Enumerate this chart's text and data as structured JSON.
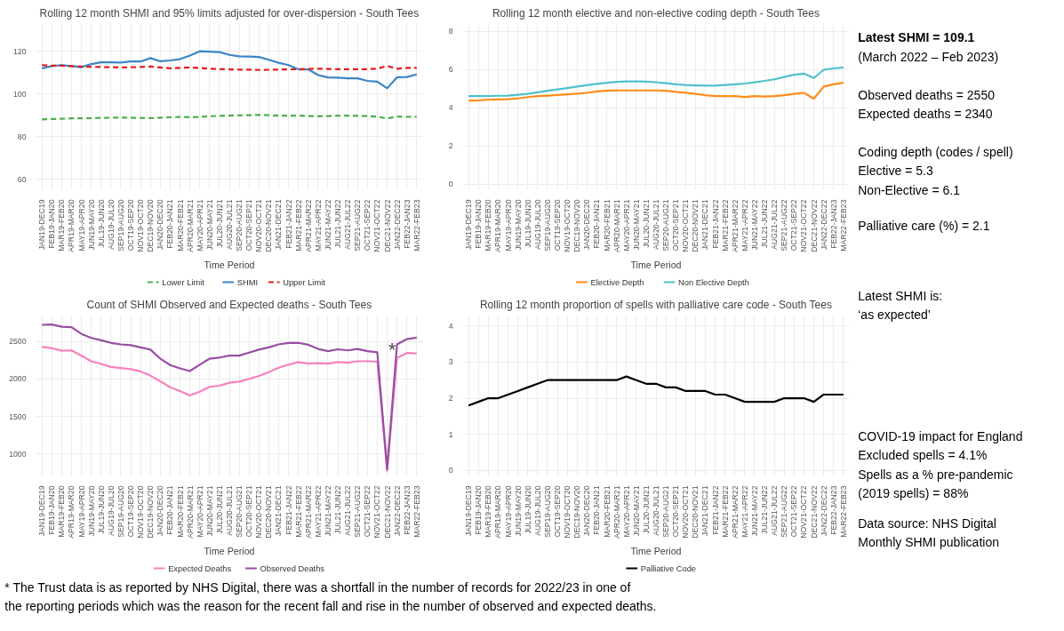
{
  "chart_data": [
    {
      "type": "line",
      "title": "Rolling 12 month SHMI and 95% limits adjusted for over-dispersion - South Tees",
      "xlabel": "Time Period",
      "categories": [
        "JAN19-DEC19",
        "FEB19-JAN20",
        "MAR19-FEB20",
        "APR19-MAR20",
        "MAY19-APR20",
        "JUN19-MAY20",
        "JUL19-JUN20",
        "AUG19-JUL20",
        "SEP19-AUG20",
        "OCT19-SEP20",
        "NOV19-OCT20",
        "DEC19-NOV20",
        "JAN20-DEC20",
        "FEB20-JAN21",
        "MAR20-FEB21",
        "APR20-MAR21",
        "MAY20-APR21",
        "JUN20-MAY21",
        "JUL20-JUN21",
        "AUG20-JUL21",
        "SEP20-AUG21",
        "OCT20-SEP21",
        "NOV20-OCT21",
        "DEC20-NOV21",
        "JAN21-DEC21",
        "FEB21-JAN22",
        "MAR21-FEB22",
        "APR21-MAR22",
        "MAY21-APR22",
        "JUN21-MAY22",
        "JUL21-JUN22",
        "AUG21-JUL22",
        "SEP21-AUG22",
        "OCT21-SEP22",
        "NOV21-OCT22",
        "DEC21-NOV22",
        "JAN22-DEC22",
        "FEB22-JAN23",
        "MAR22-FEB23"
      ],
      "ylim": [
        55,
        133
      ],
      "yticks": [
        60,
        80,
        100,
        120
      ],
      "grid": true,
      "legend": "bottom",
      "series": [
        {
          "name": "Lower Limit",
          "color": "#4daf4a",
          "line_style": "dashed",
          "values": [
            88,
            88.2,
            88.3,
            88.5,
            88.5,
            88.6,
            88.7,
            88.8,
            88.8,
            88.8,
            88.7,
            88.6,
            88.8,
            89,
            89.2,
            89,
            89.2,
            89.5,
            89.7,
            89.8,
            89.9,
            90,
            90.1,
            90,
            89.8,
            89.8,
            89.8,
            89.6,
            89.5,
            89.6,
            89.8,
            89.8,
            89.7,
            89.6,
            89.3,
            88.4,
            89.4,
            89.2,
            89.3
          ]
        },
        {
          "name": "SHMI",
          "color": "#3b85c5",
          "line_style": "solid",
          "values": [
            112,
            113,
            113.5,
            113,
            112.5,
            114,
            114.8,
            114.8,
            114.7,
            115.2,
            115.2,
            116.8,
            115.3,
            115.7,
            116.3,
            118,
            120,
            119.8,
            119.6,
            118.3,
            117.6,
            117.5,
            117.3,
            116,
            114.6,
            113.5,
            111.5,
            111.5,
            108.8,
            107.7,
            107.6,
            107.3,
            107.3,
            106.1,
            105.7,
            102.6,
            107.8,
            107.9,
            109.1
          ]
        },
        {
          "name": "Upper Limit",
          "color": "#e41a1c",
          "line_style": "dashed",
          "values": [
            113.5,
            113.2,
            113.2,
            113,
            112.8,
            112.7,
            112.6,
            112.5,
            112.4,
            112.5,
            112.6,
            112.8,
            112.4,
            112,
            112.2,
            112.4,
            112.2,
            111.8,
            111.6,
            111.5,
            111.4,
            111.4,
            111.2,
            111.3,
            111.4,
            111.5,
            111.6,
            111.7,
            111.8,
            111.7,
            111.6,
            111.6,
            111.6,
            111.6,
            111.8,
            113.1,
            111.8,
            112.2,
            112.2
          ]
        }
      ]
    },
    {
      "type": "line",
      "title": "Rolling 12 month elective and non-elective coding depth - South Tees",
      "xlabel": "Time Period",
      "categories": [
        "JAN19-DEC19",
        "FEB19-JAN20",
        "MAR19-FEB20",
        "APR19-MAR20",
        "MAY19-APR20",
        "JUN19-MAY20",
        "JUL19-JUN20",
        "AUG19-JUL20",
        "SEP19-AUG20",
        "OCT19-SEP20",
        "NOV19-OCT20",
        "DEC19-NOV20",
        "JAN20-DEC20",
        "FEB20-JAN21",
        "MAR20-FEB21",
        "APR20-MAR21",
        "MAY20-APR21",
        "JUN20-MAY21",
        "JUL20-JUN21",
        "AUG20-JUL21",
        "SEP20-AUG21",
        "OCT20-SEP21",
        "NOV20-OCT21",
        "DEC20-NOV21",
        "JAN21-DEC21",
        "FEB21-JAN22",
        "MAR21-FEB22",
        "APR21-MAR22",
        "MAY21-APR22",
        "JUN21-MAY22",
        "JUL21-JUN22",
        "AUG21-JUL22",
        "SEP21-AUG22",
        "OCT21-SEP22",
        "NOV21-OCT22",
        "DEC21-NOV22",
        "JAN22-DEC22",
        "FEB22-JAN23",
        "MAR22-FEB23"
      ],
      "ylim": [
        -0.3,
        8.4
      ],
      "yticks": [
        0,
        2,
        4,
        6,
        8
      ],
      "grid": true,
      "legend": "bottom",
      "series": [
        {
          "name": "Elective Depth",
          "color": "#ff8c1a",
          "line_style": "solid",
          "values": [
            4.37,
            4.38,
            4.41,
            4.43,
            4.44,
            4.48,
            4.55,
            4.6,
            4.63,
            4.66,
            4.7,
            4.73,
            4.77,
            4.85,
            4.88,
            4.9,
            4.9,
            4.9,
            4.9,
            4.9,
            4.88,
            4.82,
            4.78,
            4.72,
            4.65,
            4.6,
            4.6,
            4.6,
            4.56,
            4.6,
            4.58,
            4.6,
            4.65,
            4.72,
            4.77,
            4.47,
            5.1,
            5.22,
            5.3
          ]
        },
        {
          "name": "Non Elective Depth",
          "color": "#4fc1cc",
          "line_style": "solid",
          "values": [
            4.6,
            4.6,
            4.6,
            4.62,
            4.63,
            4.67,
            4.72,
            4.8,
            4.88,
            4.95,
            5.02,
            5.1,
            5.17,
            5.24,
            5.3,
            5.35,
            5.37,
            5.37,
            5.36,
            5.33,
            5.28,
            5.22,
            5.18,
            5.16,
            5.15,
            5.15,
            5.18,
            5.22,
            5.26,
            5.32,
            5.4,
            5.48,
            5.6,
            5.72,
            5.78,
            5.55,
            5.98,
            6.05,
            6.1
          ]
        }
      ]
    },
    {
      "type": "line",
      "title": "Count of SHMI Observed and Expected deaths - South Tees",
      "xlabel": "Time Period",
      "categories": [
        "JAN19-DEC19",
        "FEB19-JAN20",
        "MAR19-FEB20",
        "APR19-MAR20",
        "MAY19-APR20",
        "JUN19-MAY20",
        "JUL19-JUN20",
        "AUG19-JUL20",
        "SEP19-AUG20",
        "OCT19-SEP20",
        "NOV19-OCT20",
        "DEC19-NOV20",
        "JAN20-DEC20",
        "FEB20-JAN21",
        "MAR20-FEB21",
        "APR20-MAR21",
        "MAY20-APR21",
        "JUN20-MAY21",
        "JUL20-JUN21",
        "AUG20-JUL21",
        "SEP20-AUG21",
        "OCT20-SEP21",
        "NOV20-OCT21",
        "DEC20-NOV21",
        "JAN21-DEC21",
        "FEB21-JAN22",
        "MAR21-FEB22",
        "APR21-MAR22",
        "MAY21-APR22",
        "JUN21-MAY22",
        "JUL21-JUN22",
        "AUG21-JUL22",
        "SEP21-AUG22",
        "OCT21-SEP22",
        "NOV21-OCT22",
        "DEC21-NOV22",
        "JAN22-DEC22",
        "FEB22-JAN23",
        "MAR22-FEB23"
      ],
      "ylim": [
        710,
        2850
      ],
      "yticks": [
        1000,
        1500,
        2000,
        2500
      ],
      "grid": true,
      "legend": "bottom",
      "annotations": [
        "*",
        "* The Trust data is as reported by NHS Digital, there was a shortfall in the number of records for 2022/23 in one of the reporting periods which was the reason for the recent fall and rise in the number of observed and expected deaths."
      ],
      "series": [
        {
          "name": "Expected Deaths",
          "color": "#f781bf",
          "line_style": "solid",
          "values": [
            2425,
            2410,
            2375,
            2380,
            2310,
            2235,
            2200,
            2160,
            2145,
            2130,
            2100,
            2045,
            1970,
            1890,
            1840,
            1780,
            1830,
            1895,
            1910,
            1950,
            1965,
            2000,
            2040,
            2090,
            2150,
            2190,
            2225,
            2205,
            2210,
            2205,
            2225,
            2215,
            2235,
            2235,
            2230,
            780,
            2280,
            2345,
            2340
          ]
        },
        {
          "name": "Observed Deaths",
          "color": "#984ea3",
          "line_style": "solid",
          "values": [
            2720,
            2725,
            2695,
            2690,
            2600,
            2545,
            2515,
            2480,
            2460,
            2450,
            2420,
            2390,
            2270,
            2185,
            2140,
            2105,
            2190,
            2270,
            2285,
            2310,
            2310,
            2350,
            2390,
            2420,
            2460,
            2480,
            2480,
            2455,
            2400,
            2370,
            2395,
            2380,
            2400,
            2370,
            2355,
            800,
            2460,
            2530,
            2550
          ]
        }
      ]
    },
    {
      "type": "line",
      "title": "Rolling 12 month proportion of spells with palliative care code - South Tees",
      "xlabel": "Time Period",
      "categories": [
        "JAN19-DEC19",
        "FEB19-JAN20",
        "MAR19-FEB20",
        "APR19-MAR20",
        "MAY19-APR20",
        "JUN19-MAY20",
        "JUL19-JUN20",
        "AUG19-JUL20",
        "SEP19-AUG20",
        "OCT19-SEP20",
        "NOV19-OCT20",
        "DEC19-NOV20",
        "JAN20-DEC20",
        "FEB20-JAN21",
        "MAR20-FEB21",
        "APR20-MAR21",
        "MAY20-APR21",
        "JUN20-MAY21",
        "JUL20-JUN21",
        "AUG20-JUL21",
        "SEP20-AUG21",
        "OCT20-SEP21",
        "NOV20-OCT21",
        "DEC20-NOV21",
        "JAN21-DEC21",
        "FEB21-JAN22",
        "MAR21-FEB22",
        "APR21-MAR22",
        "MAY21-APR22",
        "JUN21-MAY22",
        "JUL21-JUN22",
        "AUG21-JUL22",
        "SEP21-AUG22",
        "OCT21-SEP22",
        "NOV21-OCT22",
        "DEC21-NOV22",
        "JAN22-DEC22",
        "FEB22-JAN23",
        "MAR22-FEB23"
      ],
      "ylim": [
        -0.15,
        4.3
      ],
      "yticks": [
        0,
        1,
        2,
        3,
        4
      ],
      "grid": true,
      "legend": "bottom",
      "series": [
        {
          "name": "Palliative Code",
          "color": "#000000",
          "line_style": "solid",
          "values": [
            1.8,
            1.9,
            2.0,
            2.0,
            2.1,
            2.2,
            2.3,
            2.4,
            2.5,
            2.5,
            2.5,
            2.5,
            2.5,
            2.5,
            2.5,
            2.5,
            2.6,
            2.5,
            2.4,
            2.4,
            2.3,
            2.3,
            2.2,
            2.2,
            2.2,
            2.1,
            2.1,
            2.0,
            1.9,
            1.9,
            1.9,
            1.9,
            2.0,
            2.0,
            2.0,
            1.9,
            2.1,
            2.1,
            2.1
          ]
        }
      ]
    },
    {
      "type": "other",
      "title": "Latest SHMI = 109.1",
      "annotations": [
        "(March 2022 – Feb 2023)",
        "Observed deaths = 2550\nExpected deaths = 2340",
        "Coding depth (codes / spell)\nElective =          5.3\nNon-Elective =   6.1",
        "Palliative care (%) = 2.1",
        "Latest SHMI is:\n ‘as expected’",
        "COVID-19 impact for England\nExcluded spells = 4.1%\nSpells as a % pre-pandemic\n(2019 spells) = 88%",
        "Data source: NHS Digital\nMonthly SHMI publication"
      ]
    }
  ]
}
